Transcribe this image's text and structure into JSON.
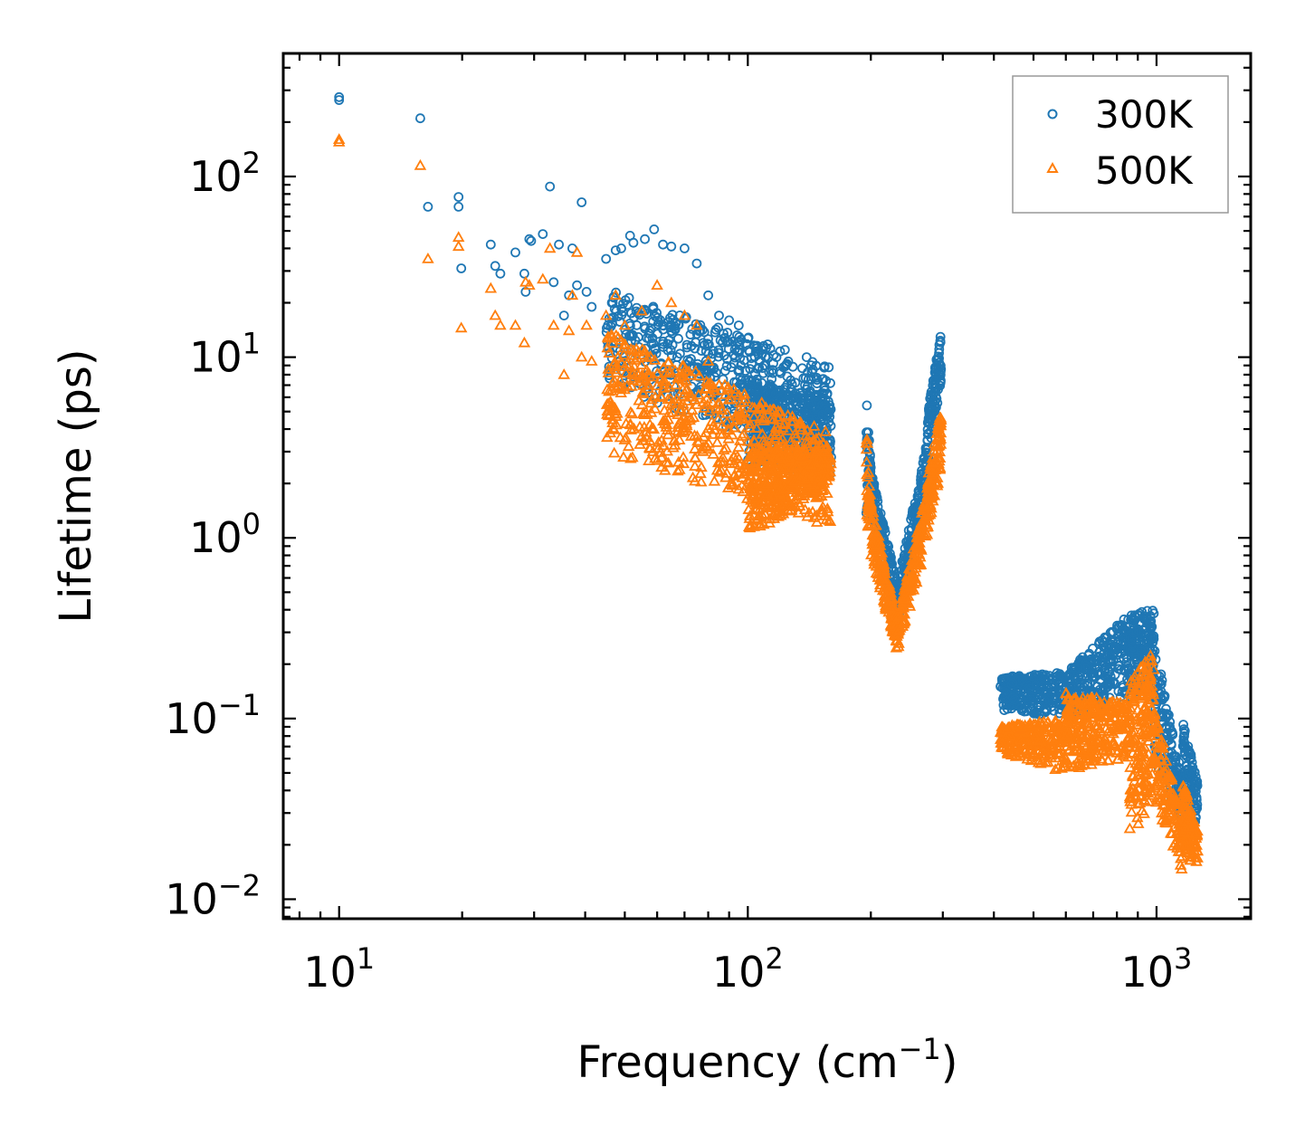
{
  "chart_data": {
    "type": "scatter",
    "title": "",
    "xlabel": "Frequency (cm⁻¹)",
    "xlabel_base": "Frequency (cm",
    "xlabel_sup": "−1",
    "xlabel_close": ")",
    "ylabel": "Lifetime (ps)",
    "xscale": "log",
    "yscale": "log",
    "xlim": [
      7.3,
      1700
    ],
    "ylim": [
      0.0078,
      480
    ],
    "x_ticks": [
      {
        "value": 10,
        "base": "10",
        "exp": "1"
      },
      {
        "value": 100,
        "base": "10",
        "exp": "2"
      },
      {
        "value": 1000,
        "base": "10",
        "exp": "3"
      }
    ],
    "y_ticks": [
      {
        "value": 0.01,
        "base": "10",
        "exp": "−2"
      },
      {
        "value": 0.1,
        "base": "10",
        "exp": "−1"
      },
      {
        "value": 1,
        "base": "10",
        "exp": "0"
      },
      {
        "value": 10,
        "base": "10",
        "exp": "1"
      },
      {
        "value": 100,
        "base": "10",
        "exp": "2"
      }
    ],
    "legend_position": "top-right",
    "series": [
      {
        "name": "300K",
        "marker": "circle",
        "color": "#1f77b4",
        "points": [
          [
            10,
            265
          ],
          [
            10,
            275
          ],
          [
            15.8,
            210
          ],
          [
            16.5,
            68
          ],
          [
            19.6,
            77
          ],
          [
            19.6,
            68
          ],
          [
            19.9,
            31
          ],
          [
            23.5,
            42
          ],
          [
            24.1,
            32
          ],
          [
            24.8,
            29
          ],
          [
            27,
            38
          ],
          [
            28.4,
            29
          ],
          [
            28.6,
            23
          ],
          [
            29.2,
            45
          ],
          [
            29.5,
            44
          ],
          [
            31.5,
            48
          ],
          [
            32.8,
            88
          ],
          [
            33.5,
            26
          ],
          [
            34.5,
            42
          ],
          [
            35.5,
            17
          ],
          [
            36.5,
            22
          ],
          [
            37.2,
            40
          ],
          [
            38.2,
            25
          ],
          [
            39.2,
            72
          ],
          [
            40.3,
            23
          ],
          [
            41.5,
            19
          ],
          [
            45,
            35
          ],
          [
            47.5,
            39
          ],
          [
            49,
            40
          ],
          [
            51.5,
            47
          ],
          [
            52.5,
            43
          ],
          [
            56,
            45
          ],
          [
            59,
            51
          ],
          [
            62,
            42
          ],
          [
            65,
            41
          ],
          [
            70,
            40
          ],
          [
            75,
            33
          ],
          [
            80,
            22
          ],
          [
            85,
            17
          ],
          [
            90,
            16
          ],
          [
            95,
            15
          ],
          [
            110,
            9
          ],
          [
            115,
            8.5
          ]
        ],
        "clusters": [
          {
            "x": [
              45,
              160
            ],
            "y_start": [
              24,
              9
            ],
            "y_end": [
              7,
              2.5
            ],
            "n": 560
          },
          {
            "x": [
              100,
              160
            ],
            "y_start": [
              7.5,
              6
            ],
            "y_end": [
              2.6,
              2.2
            ],
            "n": 420
          },
          {
            "x": [
              195,
              200
            ],
            "y_start": [
              7.5,
              2.4
            ],
            "y_end": [
              0.9,
              2.5
            ],
            "n": 40
          },
          {
            "x": [
              200,
              232
            ],
            "y_start": [
              2.4,
              0.55
            ],
            "y_end": [
              1.4,
              0.3
            ],
            "n": 160
          },
          {
            "x": [
              232,
              275
            ],
            "y_start": [
              0.55,
              3.5
            ],
            "y_end": [
              0.3,
              1.8
            ],
            "n": 160
          },
          {
            "x": [
              275,
              297
            ],
            "y_start": [
              4.8,
              14
            ],
            "y_end": [
              2.4,
              7.5
            ],
            "n": 100
          },
          {
            "x": [
              415,
              600
            ],
            "y_start": [
              0.17,
              0.18
            ],
            "y_end": [
              0.11,
              0.1
            ],
            "n": 260
          },
          {
            "x": [
              600,
              860
            ],
            "y_start": [
              0.18,
              0.38
            ],
            "y_end": [
              0.1,
              0.13
            ],
            "n": 300
          },
          {
            "x": [
              860,
              985
            ],
            "y_start": [
              0.38,
              0.4
            ],
            "y_end": [
              0.13,
              0.16
            ],
            "n": 180
          },
          {
            "x": [
              985,
              1160
            ],
            "y_start": [
              0.28,
              0.045
            ],
            "y_end": [
              0.06,
              0.024
            ],
            "n": 150
          },
          {
            "x": [
              1160,
              1260
            ],
            "y_start": [
              0.095,
              0.045
            ],
            "y_end": [
              0.025,
              0.023
            ],
            "n": 120
          }
        ]
      },
      {
        "name": "500K",
        "marker": "triangle",
        "color": "#ff7f0e",
        "points": [
          [
            10,
            155
          ],
          [
            10,
            160
          ],
          [
            15.8,
            115
          ],
          [
            16.5,
            35
          ],
          [
            19.6,
            46
          ],
          [
            19.6,
            41
          ],
          [
            19.9,
            14.5
          ],
          [
            23.5,
            24
          ],
          [
            24.1,
            17
          ],
          [
            24.8,
            15
          ],
          [
            27,
            15
          ],
          [
            28.4,
            12
          ],
          [
            28.6,
            26
          ],
          [
            29.2,
            25
          ],
          [
            31.5,
            27
          ],
          [
            32.8,
            40
          ],
          [
            33.5,
            15
          ],
          [
            35.5,
            8
          ],
          [
            36.5,
            14
          ],
          [
            37.2,
            22
          ],
          [
            38.2,
            38
          ],
          [
            39.2,
            10
          ],
          [
            40.3,
            15
          ],
          [
            41.5,
            9.5
          ],
          [
            45,
            17
          ],
          [
            47.5,
            22
          ],
          [
            50,
            15
          ],
          [
            55,
            18
          ],
          [
            60,
            25
          ],
          [
            65,
            20
          ],
          [
            70,
            17
          ],
          [
            75,
            15
          ],
          [
            80,
            9.5
          ],
          [
            85,
            7
          ]
        ],
        "clusters": [
          {
            "x": [
              45,
              160
            ],
            "y_start": [
              14,
              3.8
            ],
            "y_end": [
              3,
              1.1
            ],
            "n": 600
          },
          {
            "x": [
              100,
              160
            ],
            "y_start": [
              3.2,
              3
            ],
            "y_end": [
              0.9,
              2.1
            ],
            "n": 420
          },
          {
            "x": [
              195,
              200
            ],
            "y_start": [
              4.5,
              1.4
            ],
            "y_end": [
              0.8,
              1.6
            ],
            "n": 40
          },
          {
            "x": [
              200,
              232
            ],
            "y_start": [
              1.6,
              0.35
            ],
            "y_end": [
              0.8,
              0.23
            ],
            "n": 170
          },
          {
            "x": [
              232,
              275
            ],
            "y_start": [
              0.35,
              1.9
            ],
            "y_end": [
              0.23,
              0.9
            ],
            "n": 170
          },
          {
            "x": [
              275,
              297
            ],
            "y_start": [
              2.2,
              5
            ],
            "y_end": [
              1.1,
              2.4
            ],
            "n": 100
          },
          {
            "x": [
              415,
              600
            ],
            "y_start": [
              0.09,
              0.1
            ],
            "y_end": [
              0.065,
              0.05
            ],
            "n": 260
          },
          {
            "x": [
              600,
              860
            ],
            "y_start": [
              0.14,
              0.12
            ],
            "y_end": [
              0.05,
              0.06
            ],
            "n": 300
          },
          {
            "x": [
              860,
              985
            ],
            "y_start": [
              0.16,
              0.25
            ],
            "y_end": [
              0.022,
              0.035
            ],
            "n": 180
          },
          {
            "x": [
              985,
              1160
            ],
            "y_start": [
              0.12,
              0.028
            ],
            "y_end": [
              0.035,
              0.014
            ],
            "n": 150
          },
          {
            "x": [
              1160,
              1260
            ],
            "y_start": [
              0.045,
              0.025
            ],
            "y_end": [
              0.016,
              0.015
            ],
            "n": 120
          }
        ]
      }
    ]
  }
}
